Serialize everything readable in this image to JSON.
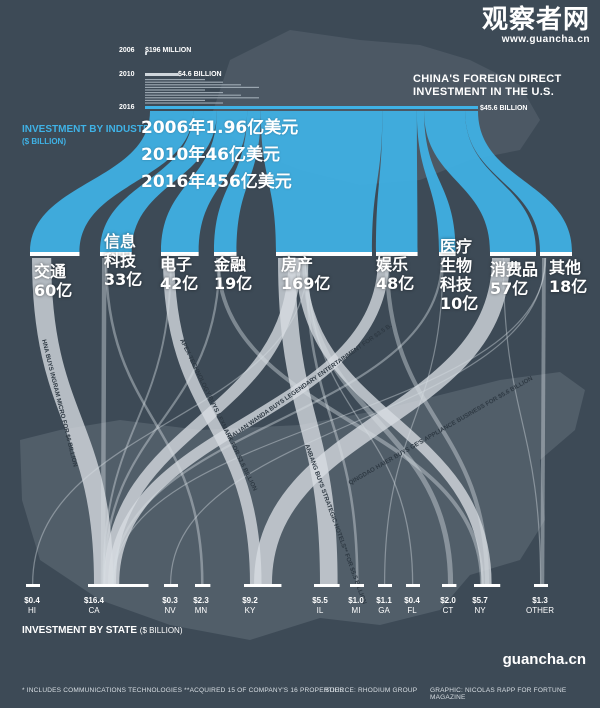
{
  "watermark": {
    "cn": "观察者网",
    "url": "www.guancha.cn"
  },
  "title": "CHINA'S FOREIGN DIRECT INVESTMENT IN THE U.S.",
  "industry_title": "INVESTMENT BY INDUSTRY",
  "industry_unit": "($ BILLION)",
  "state_title": "INVESTMENT BY STATE",
  "state_unit": "($ BILLION)",
  "annotation_lines": [
    "2006年1.96亿美元",
    "2010年46亿美元",
    "2016年456亿美元"
  ],
  "bottom_watermark": "guancha.cn",
  "footnote": "* INCLUDES COMMUNICATIONS TECHNOLOGIES   **ACQUIRED 15 OF COMPANY'S 16 PROPERTIES",
  "source": "SOURCE: RHODIUM GROUP",
  "graphic_credit": "GRAPHIC: NICOLAS RAPP FOR FORTUNE MAGAZINE",
  "colors": {
    "background": "#3d4a56",
    "accent": "#3fb2e6",
    "flow": "#d7dde2"
  },
  "chart_data": {
    "type": "sankey",
    "yearly_totals": [
      {
        "year": "2006",
        "label": "$196 MILLION",
        "value": 0.196
      },
      {
        "year": "2010",
        "label": "$4.6 BILLION",
        "value": 4.6
      },
      {
        "year": "2016",
        "label": "$45.6 BILLION",
        "value": 45.6
      }
    ],
    "industries": [
      {
        "key": "transport",
        "cn": [
          "交通"
        ],
        "value_label": "60亿",
        "value": 6.0
      },
      {
        "key": "it",
        "cn": [
          "信息",
          "科技"
        ],
        "value_label": "33亿",
        "value": 3.3
      },
      {
        "key": "electronics",
        "cn": [
          "电子"
        ],
        "value_label": "42亿",
        "value": 4.2
      },
      {
        "key": "finance",
        "cn": [
          "金融"
        ],
        "value_label": "19亿",
        "value": 1.9
      },
      {
        "key": "realestate",
        "cn": [
          "房产"
        ],
        "value_label": "169亿",
        "value": 16.9
      },
      {
        "key": "entertainment",
        "cn": [
          "娱乐"
        ],
        "value_label": "48亿",
        "value": 4.8
      },
      {
        "key": "health",
        "cn": [
          "医疗",
          "生物",
          "科技"
        ],
        "value_label": "10亿",
        "value": 1.0
      },
      {
        "key": "consumer",
        "cn": [
          "消费品"
        ],
        "value_label": "57亿",
        "value": 5.7
      },
      {
        "key": "other",
        "cn": [
          "其他"
        ],
        "value_label": "18亿",
        "value": 1.8
      }
    ],
    "states": [
      {
        "code": "HI",
        "value_label": "$0.4",
        "value": 0.4
      },
      {
        "code": "CA",
        "value_label": "$16.4",
        "value": 16.4
      },
      {
        "code": "NV",
        "value_label": "$0.3",
        "value": 0.3
      },
      {
        "code": "MN",
        "value_label": "$2.3",
        "value": 2.3
      },
      {
        "code": "KY",
        "value_label": "$9.2",
        "value": 9.2
      },
      {
        "code": "IL",
        "value_label": "$5.5",
        "value": 5.5
      },
      {
        "code": "MI",
        "value_label": "$1.0",
        "value": 1.0
      },
      {
        "code": "GA",
        "value_label": "$1.1",
        "value": 1.1
      },
      {
        "code": "FL",
        "value_label": "$0.4",
        "value": 0.4
      },
      {
        "code": "CT",
        "value_label": "$2.0",
        "value": 2.0
      },
      {
        "code": "NY",
        "value_label": "$5.7",
        "value": 5.7
      },
      {
        "code": "OTHER",
        "value_label": "$1.3",
        "value": 1.3
      }
    ],
    "deal_annotations": [
      "HNA BUYS INGRAM MICRO FOR $6 BILLION",
      "APEX TECHNOLOGY BUYS LEXMARK FOR $3.6 BILLION",
      "DALIAN WANDA BUYS LEGENDARY ENTERTAINMENT FOR $3.5 B.",
      "ANBANG BUYS STRATEGIC HOTELS** FOR $5.5 BILLION",
      "QINGDAO HAIER BUYS GE'S APPLIANCE BUSINESS FOR $5.6 BILLION"
    ]
  }
}
